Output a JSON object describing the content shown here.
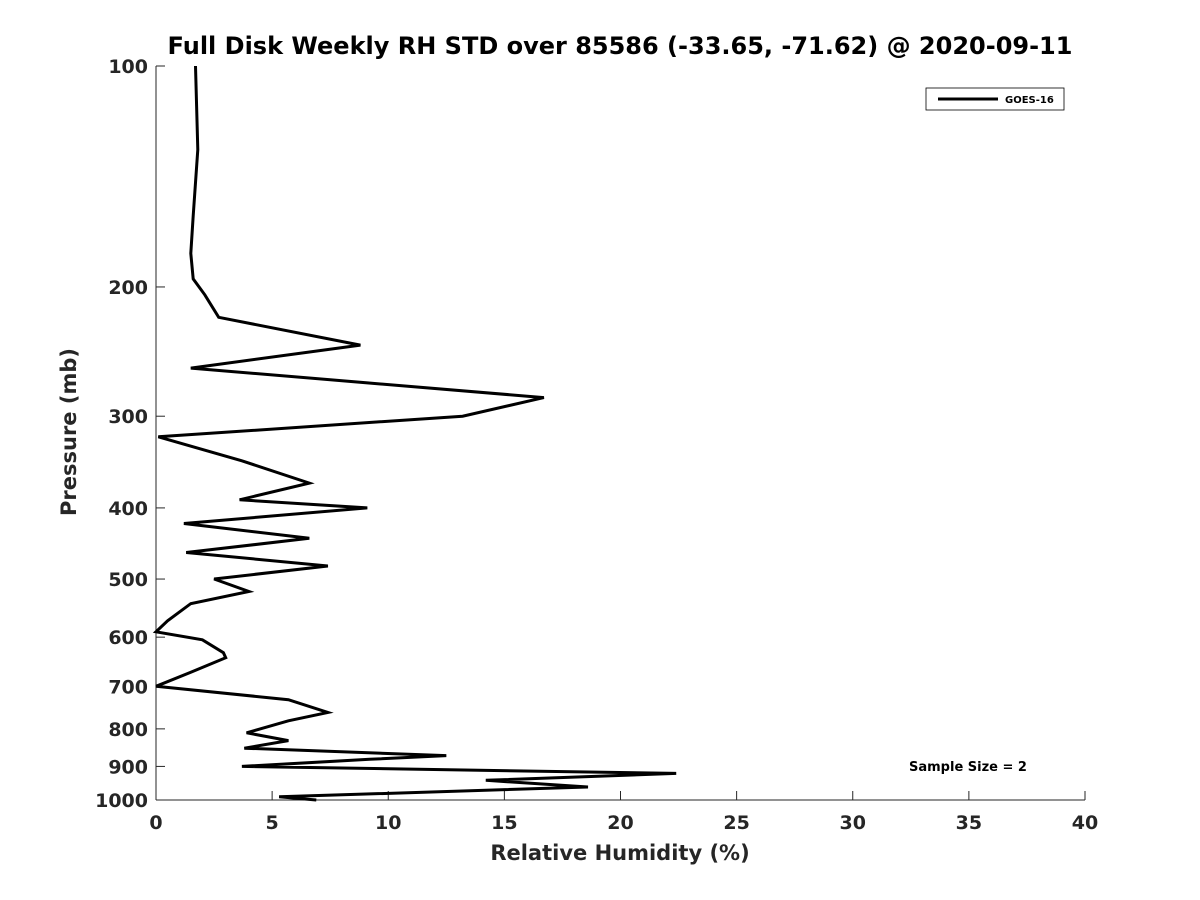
{
  "chart_data": {
    "type": "line",
    "title": "Full Disk Weekly RH STD over 85586 (-33.65, -71.62) @ 2020-09-11",
    "xlabel": "Relative Humidity (%)",
    "ylabel": "Pressure (mb)",
    "xlim": [
      0,
      40
    ],
    "ylim": [
      1000,
      100
    ],
    "y_scale": "log",
    "y_reversed": true,
    "x_ticks": [
      0,
      5,
      10,
      15,
      20,
      25,
      30,
      35,
      40
    ],
    "y_ticks": [
      100,
      200,
      300,
      400,
      500,
      600,
      700,
      800,
      900,
      1000
    ],
    "grid": false,
    "legend_position": "top-right",
    "annotation": "Sample Size = 2",
    "series": [
      {
        "name": "GOES-16",
        "color": "#000000",
        "x": [
          1.7,
          1.8,
          1.6,
          1.5,
          1.6,
          2.1,
          2.7,
          8.8,
          1.5,
          16.7,
          13.2,
          0.1,
          3.7,
          6.6,
          3.6,
          9.1,
          1.2,
          6.6,
          1.3,
          7.4,
          2.5,
          4.0,
          1.5,
          0.5,
          0.0,
          2.0,
          2.9,
          3.0,
          1.5,
          0.0,
          5.7,
          7.4,
          5.7,
          3.9,
          5.7,
          3.8,
          12.5,
          9.2,
          3.7,
          22.4,
          14.2,
          18.6,
          5.3,
          6.9
        ],
        "y": [
          100,
          130,
          160,
          180,
          195,
          205,
          220,
          240,
          258,
          283,
          300,
          320,
          345,
          370,
          390,
          400,
          420,
          440,
          460,
          480,
          500,
          520,
          540,
          570,
          590,
          605,
          630,
          640,
          670,
          700,
          730,
          760,
          780,
          810,
          830,
          850,
          870,
          880,
          900,
          920,
          940,
          960,
          990,
          1000
        ]
      }
    ]
  }
}
